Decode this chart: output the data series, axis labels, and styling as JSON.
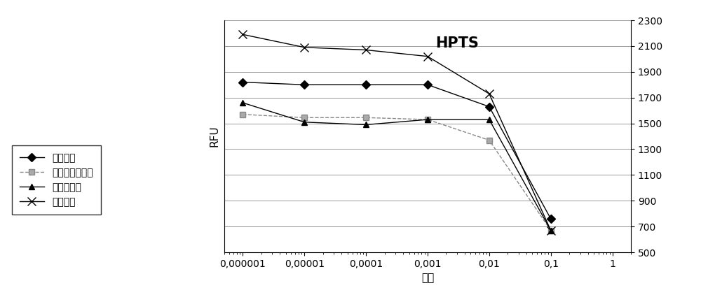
{
  "title": "HPTS",
  "xlabel": "稀释",
  "ylabel": "RFU",
  "x_values": [
    1e-06,
    1e-05,
    0.0001,
    0.001,
    0.01,
    0.1
  ],
  "series": [
    {
      "label": "大肠杆菌",
      "marker": "D",
      "color": "#000000",
      "linestyle": "-",
      "markersize": 6,
      "markerfacecolor": "#000000",
      "values": [
        1820,
        1800,
        1800,
        1800,
        1630,
        760
      ]
    },
    {
      "label": "金黄色葡萄球菌",
      "marker": "s",
      "color": "#888888",
      "linestyle": "--",
      "markersize": 6,
      "markerfacecolor": "#aaaaaa",
      "values": [
        1570,
        1545,
        1545,
        1530,
        1370,
        670
      ]
    },
    {
      "label": "白色念珠菌",
      "marker": "^",
      "color": "#000000",
      "linestyle": "-",
      "markersize": 6,
      "markerfacecolor": "#000000",
      "values": [
        1660,
        1510,
        1490,
        1530,
        1530,
        670
      ]
    },
    {
      "label": "阴性对照",
      "marker": "x",
      "color": "#000000",
      "linestyle": "-",
      "markersize": 8,
      "markerfacecolor": "#000000",
      "values": [
        2190,
        2090,
        2070,
        2020,
        1730,
        670
      ]
    }
  ],
  "ylim": [
    500,
    2300
  ],
  "yticks": [
    500,
    700,
    900,
    1100,
    1300,
    1500,
    1700,
    1900,
    2100,
    2300
  ],
  "background_color": "#ffffff",
  "grid_color": "#999999",
  "title_fontsize": 15,
  "axis_label_fontsize": 11,
  "tick_fontsize": 10,
  "legend_fontsize": 10,
  "x_tick_labels": [
    "0,000001",
    "0,00001",
    "0,0001",
    "0,001",
    "0,01",
    "0,1",
    "1"
  ],
  "all_x_ticks": [
    1e-06,
    1e-05,
    0.0001,
    0.001,
    0.01,
    0.1,
    1.0
  ]
}
